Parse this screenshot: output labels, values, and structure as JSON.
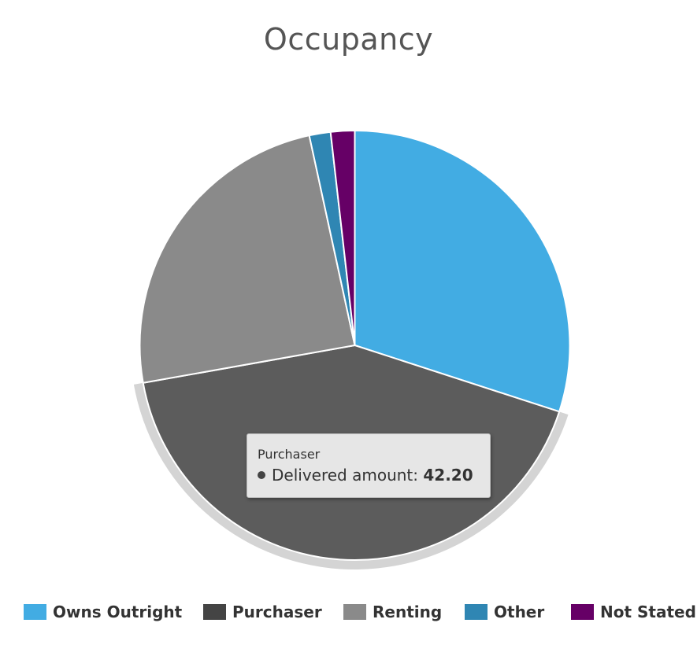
{
  "chart_data": {
    "type": "pie",
    "title": "Occupancy",
    "slices": [
      {
        "name": "Owns Outright",
        "value": 30.0,
        "color": "#42ace3"
      },
      {
        "name": "Purchaser",
        "value": 42.2,
        "color": "#5c5c5c"
      },
      {
        "name": "Renting",
        "value": 24.4,
        "color": "#8a8a8a"
      },
      {
        "name": "Other",
        "value": 1.6,
        "color": "#2f86b3"
      },
      {
        "name": "Not Stated",
        "value": 1.8,
        "color": "#660066"
      }
    ],
    "highlighted_slice": "Purchaser",
    "legend_position": "bottom"
  },
  "tooltip": {
    "title": "Purchaser",
    "series_label": "Delivered amount:",
    "value": "42.20"
  },
  "legend_colors": {
    "Owns Outright": "#42ace3",
    "Purchaser": "#444444",
    "Renting": "#8a8a8a",
    "Other": "#2f86b3",
    "Not Stated": "#660066"
  }
}
